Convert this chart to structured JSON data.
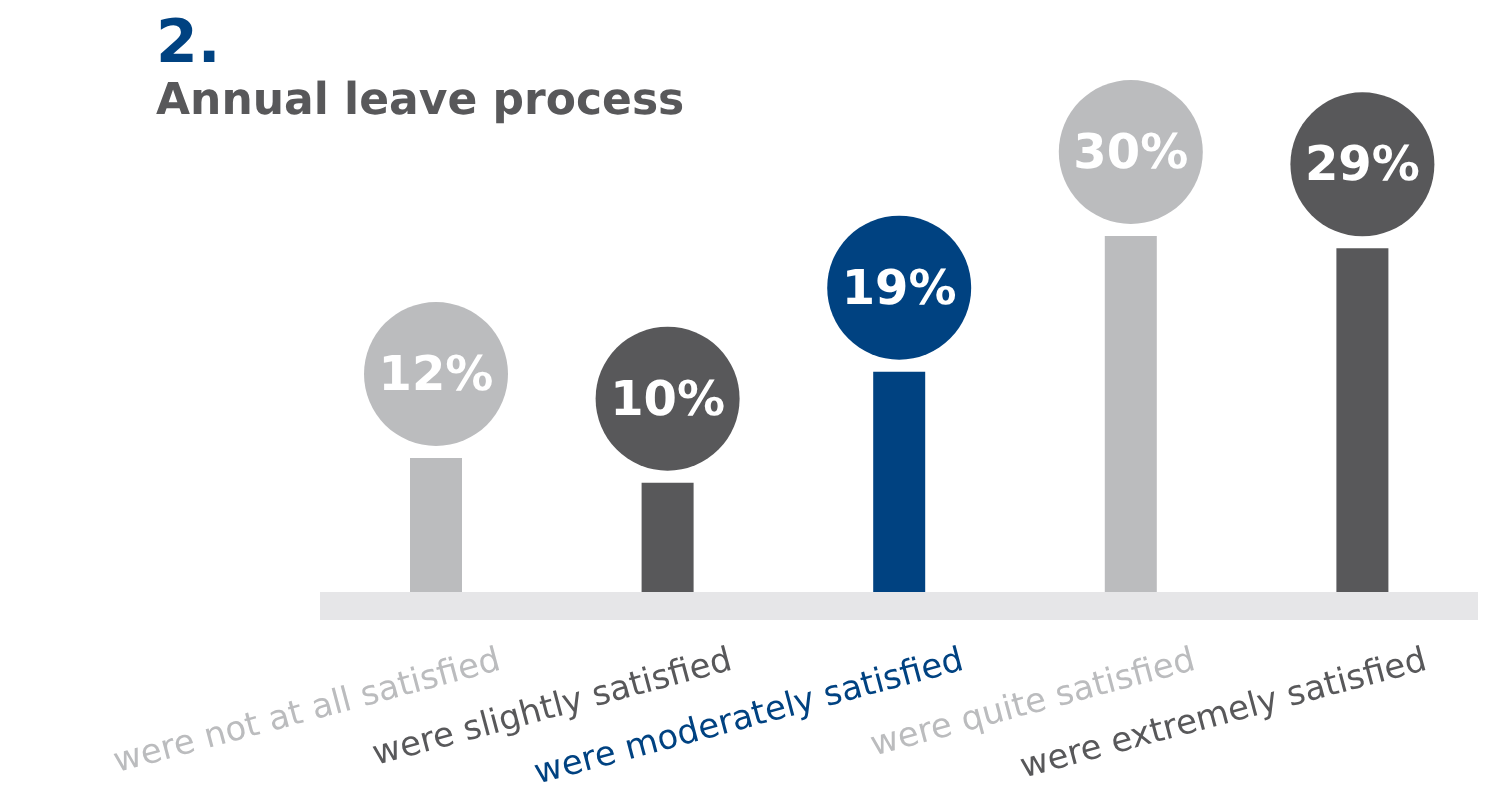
{
  "chart_data": {
    "type": "bar",
    "title": "Annual leave process",
    "annotations": [
      "2."
    ],
    "categories": [
      "were not at all satisfied",
      "were slightly satisfied",
      "were moderately satisfied",
      "were quite satisfied",
      "were extremely satisfied"
    ],
    "values": [
      12,
      10,
      19,
      30,
      29
    ],
    "value_labels": [
      "12%",
      "10%",
      "19%",
      "30%",
      "29%"
    ],
    "colors": [
      "#bbbcbe",
      "#58585a",
      "#004281",
      "#bbbcbe",
      "#58585a"
    ],
    "grid": false,
    "legend": false
  }
}
